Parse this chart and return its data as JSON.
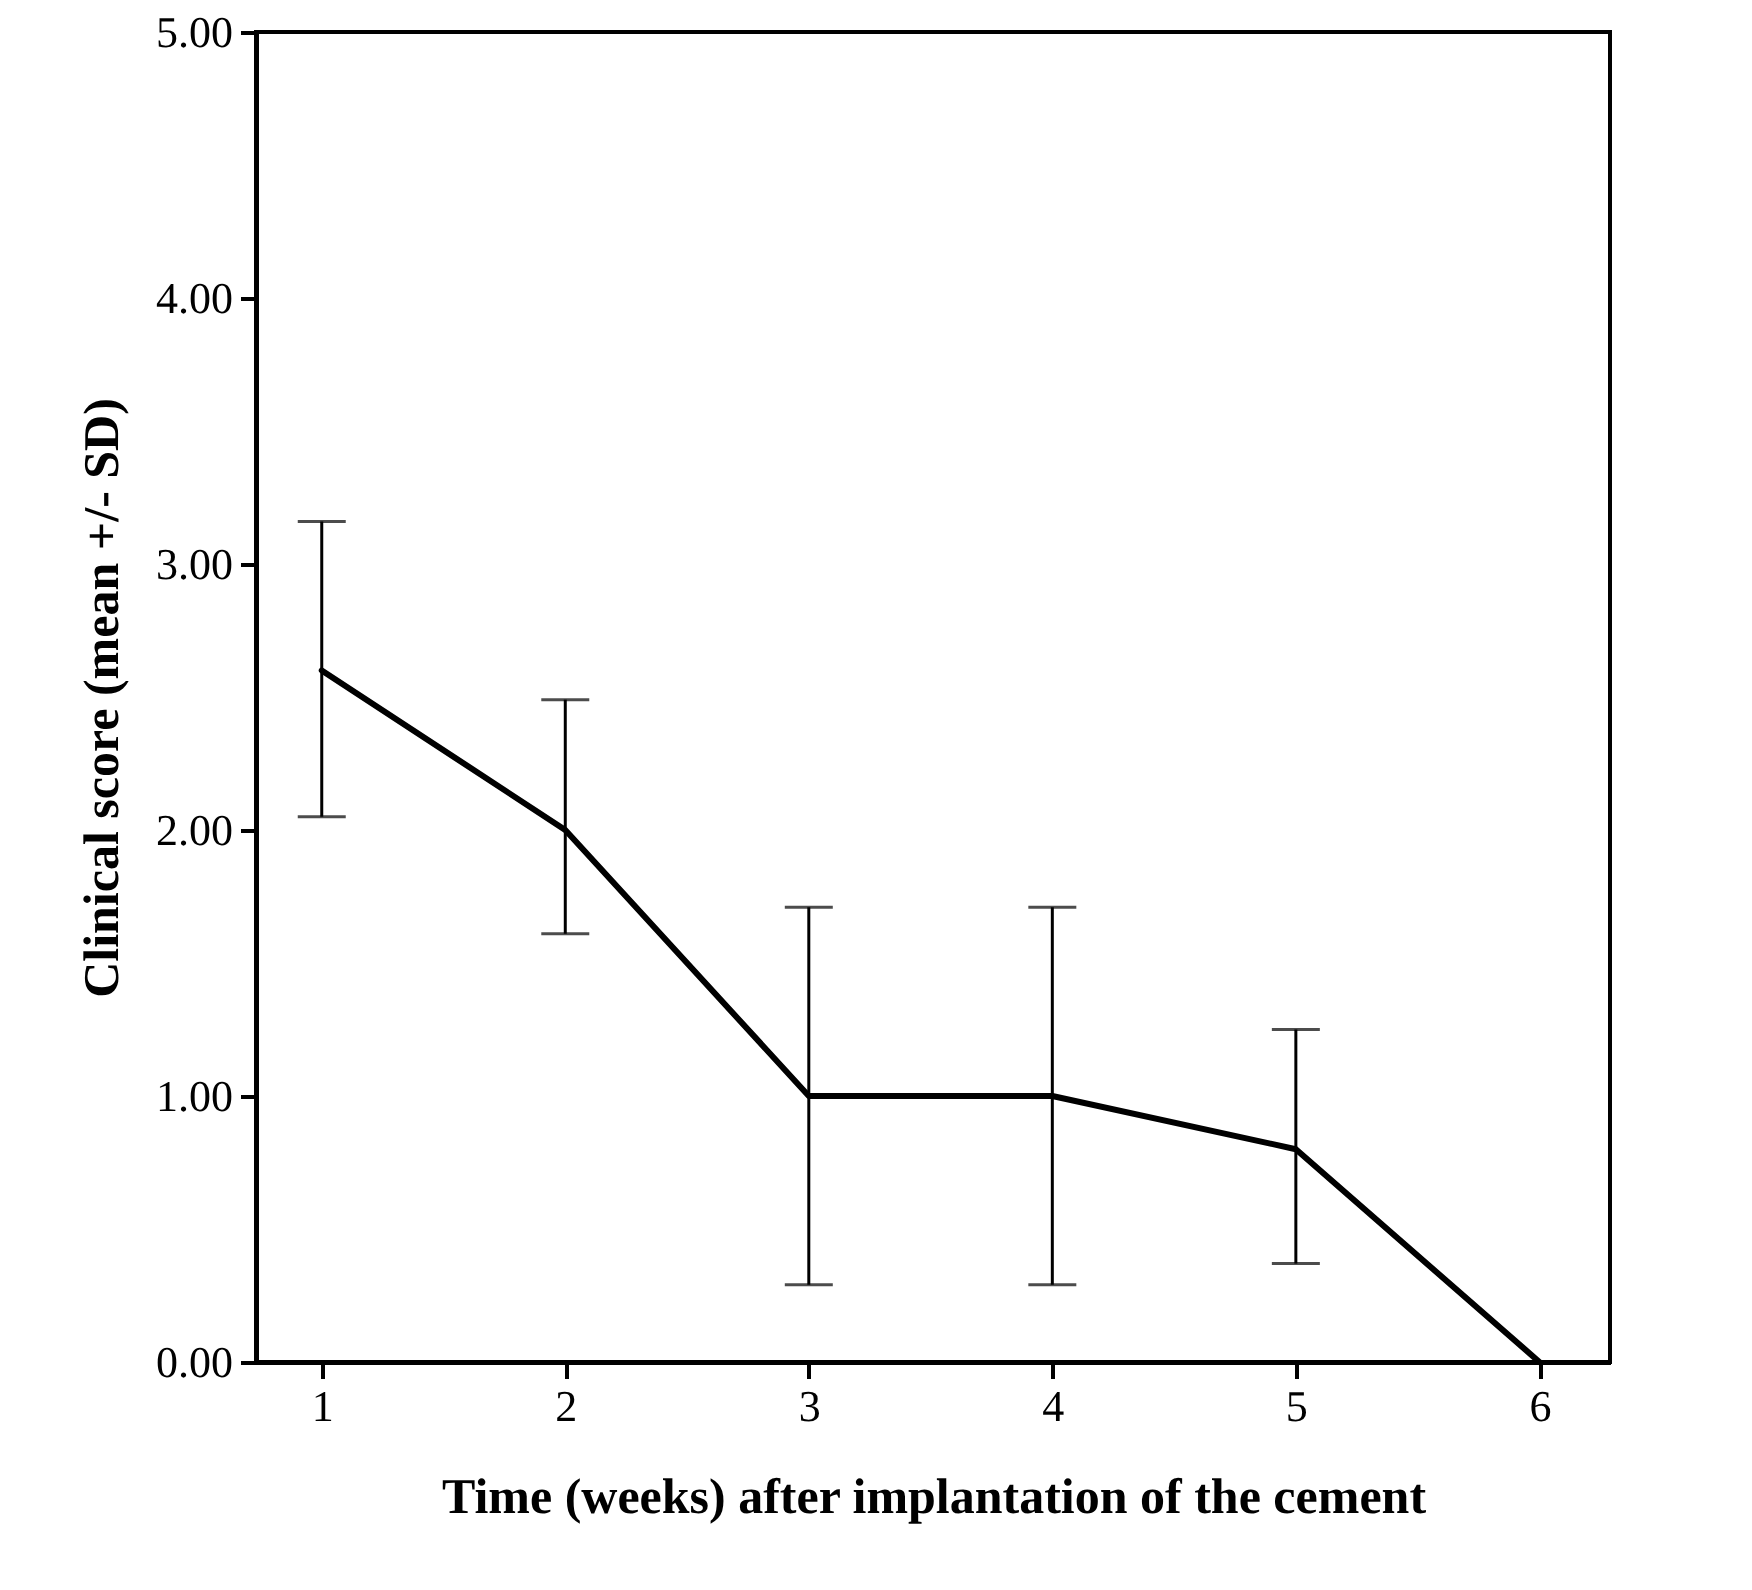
{
  "chart_data": {
    "type": "line",
    "xlabel": "Time (weeks) after implantation of the cement",
    "ylabel": "Clinical score (mean +/- SD)",
    "x": [
      1,
      2,
      3,
      4,
      5,
      6
    ],
    "series": [
      {
        "color": "#000000",
        "values": [
          2.6,
          2.0,
          1.0,
          1.0,
          0.8,
          0.0
        ],
        "errors": [
          [
            2.05,
            3.16
          ],
          [
            1.61,
            2.49
          ],
          [
            0.29,
            1.71
          ],
          [
            0.29,
            1.71
          ],
          [
            0.37,
            1.25
          ],
          null
        ]
      }
    ],
    "xlim": [
      0.73,
      6.29
    ],
    "xticks": [
      1,
      2,
      3,
      4,
      5,
      6
    ],
    "ylim": [
      0,
      5
    ],
    "yticks": [
      {
        "value": 0,
        "label": "0.00"
      },
      {
        "value": 1,
        "label": "1.00"
      },
      {
        "value": 2,
        "label": "2.00"
      },
      {
        "value": 3,
        "label": "3.00"
      },
      {
        "value": 4,
        "label": "4.00"
      },
      {
        "value": 5,
        "label": "5.00"
      }
    ],
    "grid": false,
    "marker": "none",
    "line_style": "solid"
  }
}
